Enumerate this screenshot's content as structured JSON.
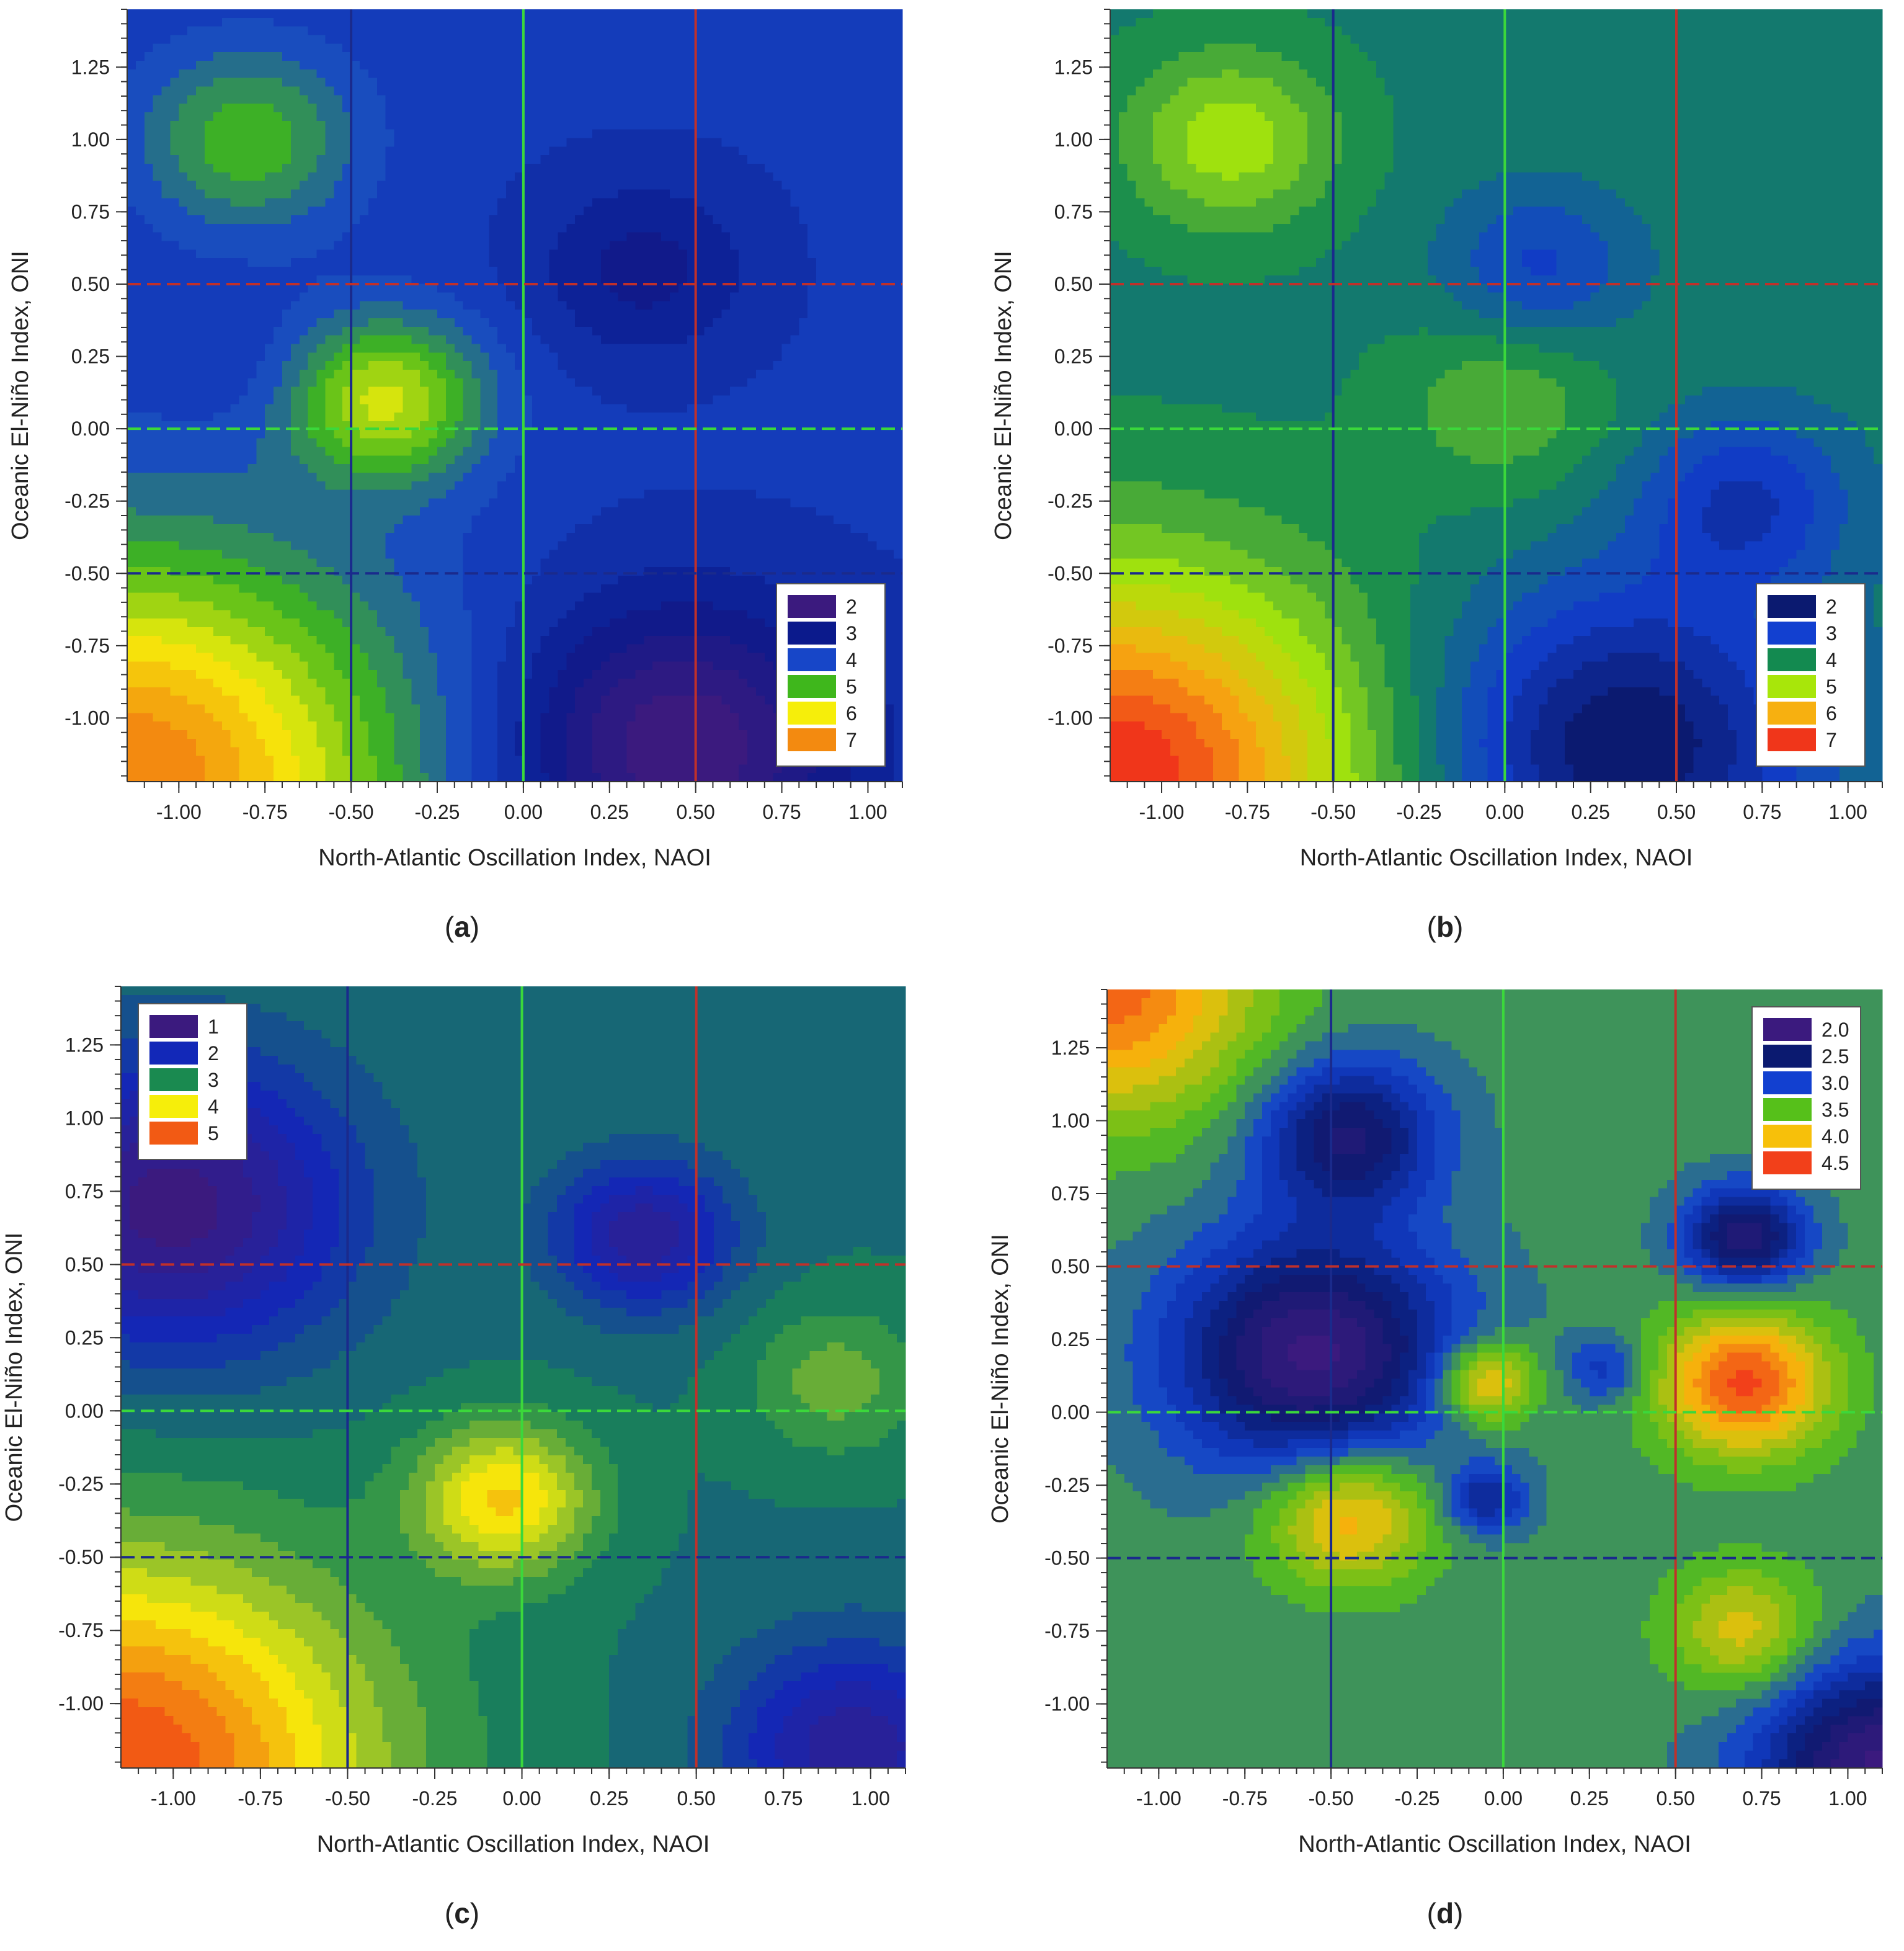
{
  "chart_data": [
    {
      "panel": "(a)",
      "type": "contour",
      "xlabel": "North-Atlantic Oscillation Index, NAOI",
      "ylabel": "Oceanic El-Niño Index, ONI",
      "xlim": [
        -1.15,
        1.1
      ],
      "ylim": [
        -1.22,
        1.45
      ],
      "x_ticks": [
        "-1.00",
        "-0.75",
        "-0.50",
        "-0.25",
        "0.00",
        "0.25",
        "0.50",
        "0.75",
        "1.00"
      ],
      "y_ticks": [
        "1.25",
        "1.00",
        "0.75",
        "0.50",
        "0.25",
        "0.00",
        "-0.25",
        "-0.50",
        "-0.75",
        "-1.00"
      ],
      "legend": {
        "position": "bottom-right",
        "labels": [
          "2",
          "3",
          "4",
          "5",
          "6",
          "7"
        ],
        "colors": [
          "#3b1a7e",
          "#0b1a8c",
          "#1746c8",
          "#3fb71c",
          "#f6ee0a",
          "#f38a10"
        ]
      },
      "levels": [
        2,
        3,
        4,
        5,
        6,
        7
      ],
      "color_min": 2.3,
      "color_max": 7.8,
      "vertical_lines": [
        {
          "x": -0.5,
          "color": "#1a2a8c"
        },
        {
          "x": 0.0,
          "color": "#3bd83b"
        },
        {
          "x": 0.5,
          "color": "#c0302a"
        }
      ],
      "horizontal_lines": [
        {
          "y": 0.5,
          "color": "#c0302a"
        },
        {
          "y": 0.0,
          "color": "#3bd83b"
        },
        {
          "y": -0.5,
          "color": "#1a2a8c"
        }
      ],
      "peaks": [
        {
          "x": -1.15,
          "y": -1.22,
          "v": 7.8,
          "s": 0.55
        },
        {
          "x": -0.4,
          "y": 0.1,
          "v": 6.3,
          "s": 0.2
        },
        {
          "x": -0.8,
          "y": 1.0,
          "v": 5.6,
          "s": 0.22
        },
        {
          "x": 0.35,
          "y": 0.55,
          "v": 3.4,
          "s": 0.22
        },
        {
          "x": 0.45,
          "y": -1.1,
          "v": 2.3,
          "s": 0.35
        },
        {
          "x": -0.8,
          "y": 0.2,
          "v": 4.0,
          "s": 0.15
        }
      ],
      "base": 4.2
    },
    {
      "panel": "(b)",
      "type": "contour",
      "xlabel": "North-Atlantic Oscillation Index, NAOI",
      "ylabel": "Oceanic El-Niño Index, ONI",
      "xlim": [
        -1.15,
        1.1
      ],
      "ylim": [
        -1.22,
        1.45
      ],
      "x_ticks": [
        "-1.00",
        "-0.75",
        "-0.50",
        "-0.25",
        "0.00",
        "0.25",
        "0.50",
        "0.75",
        "1.00"
      ],
      "y_ticks": [
        "1.25",
        "1.00",
        "0.75",
        "0.50",
        "0.25",
        "0.00",
        "-0.25",
        "-0.50",
        "-0.75",
        "-1.00"
      ],
      "legend": {
        "position": "bottom-right",
        "labels": [
          "2",
          "3",
          "4",
          "5",
          "6",
          "7"
        ],
        "colors": [
          "#0b1a70",
          "#1240d0",
          "#138a50",
          "#a8e60a",
          "#f7b010",
          "#f0361a"
        ]
      },
      "levels": [
        2,
        3,
        4,
        5,
        6,
        7
      ],
      "color_min": 2.4,
      "color_max": 7.8,
      "vertical_lines": [
        {
          "x": -0.5,
          "color": "#1a2a8c"
        },
        {
          "x": 0.0,
          "color": "#3bd83b"
        },
        {
          "x": 0.5,
          "color": "#c0302a"
        }
      ],
      "horizontal_lines": [
        {
          "y": 0.5,
          "color": "#c0302a"
        },
        {
          "y": 0.0,
          "color": "#3bd83b"
        },
        {
          "y": -0.5,
          "color": "#1a2a8c"
        }
      ],
      "peaks": [
        {
          "x": -1.15,
          "y": -1.22,
          "v": 7.8,
          "s": 0.5
        },
        {
          "x": -0.8,
          "y": 1.0,
          "v": 5.6,
          "s": 0.22
        },
        {
          "x": 0.0,
          "y": 0.1,
          "v": 5.1,
          "s": 0.22
        },
        {
          "x": 0.1,
          "y": 0.55,
          "v": 3.5,
          "s": 0.2
        },
        {
          "x": 0.35,
          "y": -1.1,
          "v": 2.4,
          "s": 0.38
        },
        {
          "x": 0.7,
          "y": -0.25,
          "v": 3.3,
          "s": 0.22
        }
      ],
      "base": 4.4
    },
    {
      "panel": "(c)",
      "type": "contour",
      "xlabel": "North-Atlantic Oscillation Index, NAOI",
      "ylabel": "Oceanic El-Niño Index, ONI",
      "xlim": [
        -1.15,
        1.1
      ],
      "ylim": [
        -1.22,
        1.45
      ],
      "x_ticks": [
        "-1.00",
        "-0.75",
        "-0.50",
        "-0.25",
        "0.00",
        "0.25",
        "0.50",
        "0.75",
        "1.00"
      ],
      "y_ticks": [
        "1.25",
        "1.00",
        "0.75",
        "0.50",
        "0.25",
        "0.00",
        "-0.25",
        "-0.50",
        "-0.75",
        "-1.00"
      ],
      "legend": {
        "position": "top-left",
        "labels": [
          "1",
          "2",
          "3",
          "4",
          "5"
        ],
        "colors": [
          "#3b1a7e",
          "#1228b8",
          "#1a8a50",
          "#f6ee0a",
          "#f25a14"
        ]
      },
      "levels": [
        1,
        2,
        3,
        4,
        5
      ],
      "color_min": 1.5,
      "color_max": 5.6,
      "vertical_lines": [
        {
          "x": -0.5,
          "color": "#1a2a8c"
        },
        {
          "x": 0.0,
          "color": "#3bd83b"
        },
        {
          "x": 0.5,
          "color": "#c0302a"
        }
      ],
      "horizontal_lines": [
        {
          "y": 0.5,
          "color": "#c0302a"
        },
        {
          "y": 0.0,
          "color": "#3bd83b"
        },
        {
          "y": -0.5,
          "color": "#1a2a8c"
        }
      ],
      "peaks": [
        {
          "x": -1.15,
          "y": -1.22,
          "v": 5.6,
          "s": 0.5
        },
        {
          "x": -0.05,
          "y": -0.3,
          "v": 4.7,
          "s": 0.18
        },
        {
          "x": -1.0,
          "y": 0.7,
          "v": 1.6,
          "s": 0.35
        },
        {
          "x": 0.35,
          "y": 0.6,
          "v": 2.0,
          "s": 0.18
        },
        {
          "x": 0.9,
          "y": 0.1,
          "v": 3.9,
          "s": 0.18
        },
        {
          "x": 0.95,
          "y": -1.15,
          "v": 2.0,
          "s": 0.25
        }
      ],
      "base": 3.3
    },
    {
      "panel": "(d)",
      "type": "contour",
      "xlabel": "North-Atlantic Oscillation Index, NAOI",
      "ylabel": "Oceanic El-Niño Index, ONI",
      "xlim": [
        -1.15,
        1.1
      ],
      "ylim": [
        -1.22,
        1.45
      ],
      "x_ticks": [
        "-1.00",
        "-0.75",
        "-0.50",
        "-0.25",
        "0.00",
        "0.25",
        "0.50",
        "0.75",
        "1.00"
      ],
      "y_ticks": [
        "1.25",
        "1.00",
        "0.75",
        "0.50",
        "0.25",
        "0.00",
        "-0.25",
        "-0.50",
        "-0.75",
        "-1.00"
      ],
      "legend": {
        "position": "top-right",
        "labels": [
          "2.0",
          "2.5",
          "3.0",
          "3.5",
          "4.0",
          "4.5"
        ],
        "colors": [
          "#3b1a7e",
          "#0b1a70",
          "#1240d0",
          "#56c01a",
          "#f7c00a",
          "#f2401a"
        ]
      },
      "levels": [
        2.0,
        2.5,
        3.0,
        3.5,
        4.0,
        4.5
      ],
      "color_min": 2.2,
      "color_max": 4.7,
      "vertical_lines": [
        {
          "x": -0.5,
          "color": "#1a2a8c"
        },
        {
          "x": 0.0,
          "color": "#3bd83b"
        },
        {
          "x": 0.5,
          "color": "#c0302a"
        }
      ],
      "horizontal_lines": [
        {
          "y": 0.5,
          "color": "#c0302a"
        },
        {
          "y": 0.0,
          "color": "#3bd83b"
        },
        {
          "y": -0.5,
          "color": "#1a2a8c"
        }
      ],
      "peaks": [
        {
          "x": -0.55,
          "y": 0.2,
          "v": 2.3,
          "s": 0.28
        },
        {
          "x": -0.45,
          "y": 0.95,
          "v": 2.6,
          "s": 0.18
        },
        {
          "x": 0.7,
          "y": 0.1,
          "v": 4.6,
          "s": 0.17
        },
        {
          "x": -0.05,
          "y": 0.1,
          "v": 4.3,
          "s": 0.1
        },
        {
          "x": -0.45,
          "y": -0.35,
          "v": 4.3,
          "s": 0.17
        },
        {
          "x": 0.7,
          "y": -0.75,
          "v": 4.1,
          "s": 0.15
        },
        {
          "x": -1.15,
          "y": 1.45,
          "v": 4.5,
          "s": 0.3
        },
        {
          "x": 1.1,
          "y": -1.22,
          "v": 2.3,
          "s": 0.25
        },
        {
          "x": 0.7,
          "y": 0.6,
          "v": 2.5,
          "s": 0.12
        },
        {
          "x": -0.05,
          "y": -0.3,
          "v": 2.9,
          "s": 0.08
        },
        {
          "x": 0.3,
          "y": 0.15,
          "v": 3.1,
          "s": 0.08
        }
      ],
      "base": 3.5
    }
  ]
}
